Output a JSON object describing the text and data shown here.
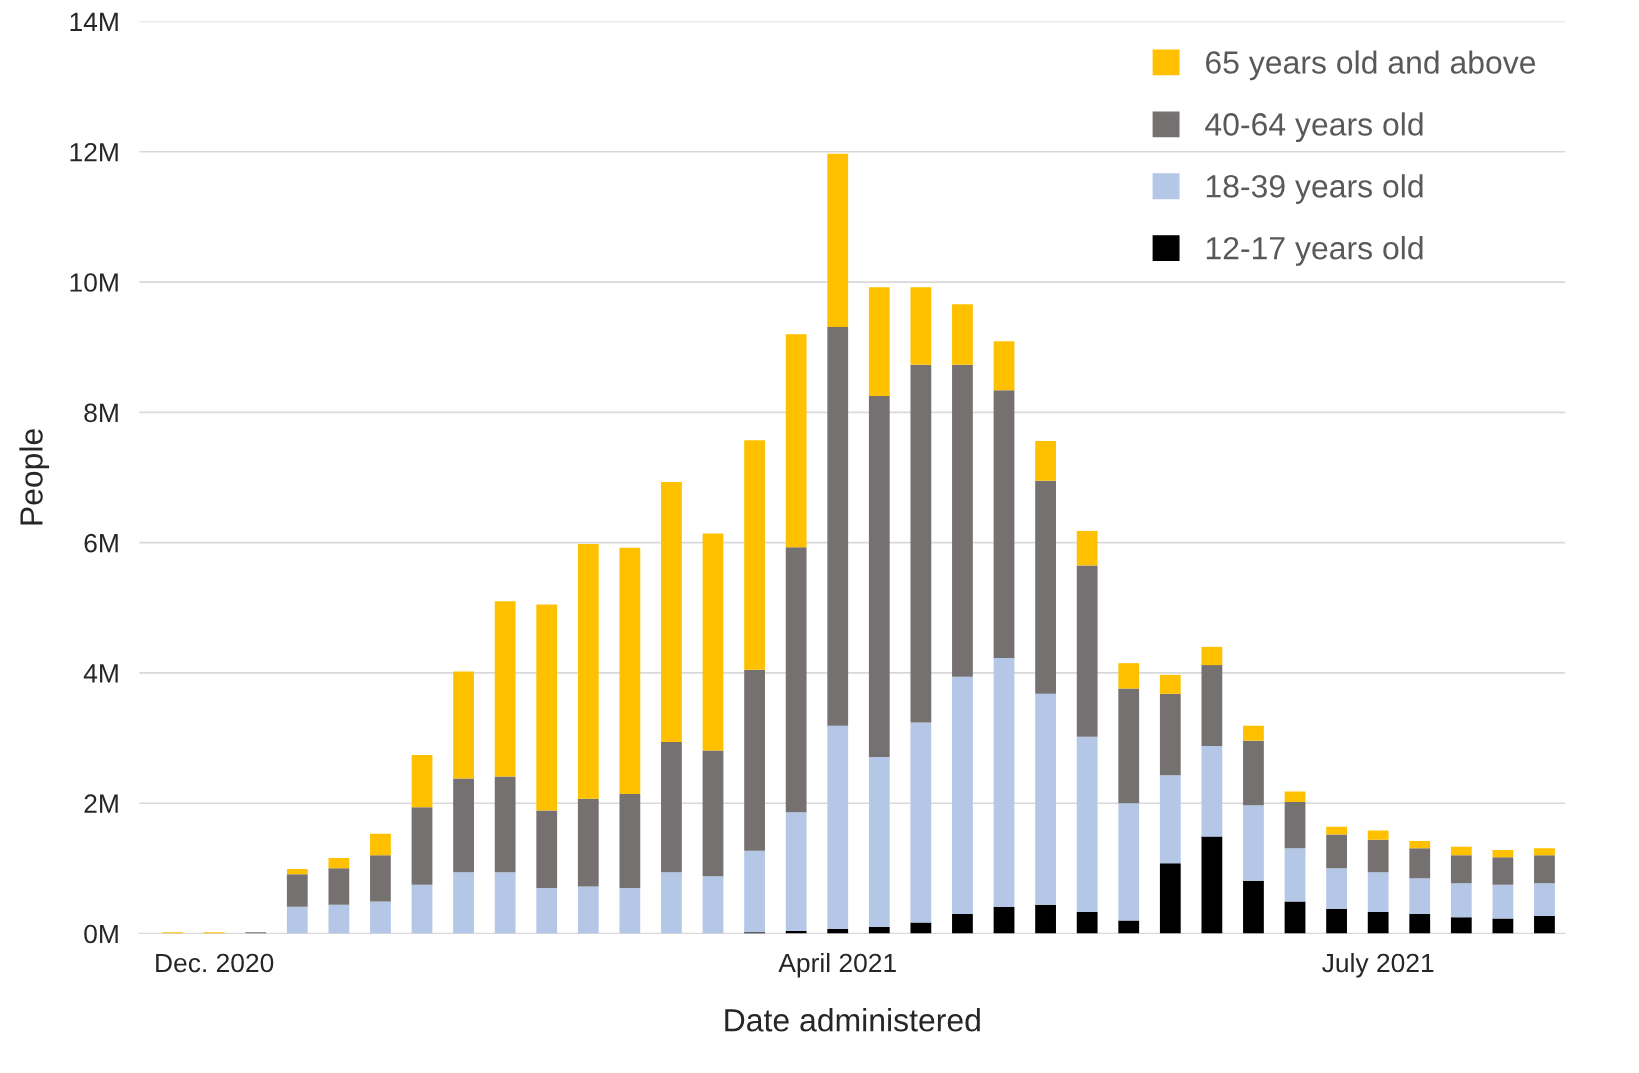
{
  "chart_data": {
    "type": "bar",
    "stacked": true,
    "xlabel": "Date administered",
    "ylabel": "People",
    "categories": [
      null,
      "Dec. 2020",
      null,
      null,
      null,
      null,
      null,
      null,
      null,
      null,
      null,
      null,
      null,
      null,
      null,
      null,
      "April 2021",
      null,
      null,
      null,
      null,
      null,
      null,
      null,
      null,
      null,
      null,
      null,
      null,
      "July 2021",
      null,
      null,
      null,
      null
    ],
    "series": [
      {
        "name": "12-17 years old",
        "color": "#000000",
        "values": [
          null,
          null,
          null,
          null,
          null,
          null,
          null,
          null,
          null,
          null,
          null,
          null,
          null,
          null,
          0.02,
          0.04,
          0.07,
          0.1,
          0.17,
          0.3,
          0.41,
          0.44,
          0.33,
          0.2,
          1.08,
          1.49,
          0.81,
          0.49,
          0.38,
          0.33,
          0.3,
          0.25,
          0.23,
          0.27
        ]
      },
      {
        "name": "18-39 years old",
        "color": "#b4c7e7",
        "values": [
          null,
          null,
          null,
          0.41,
          0.44,
          0.49,
          0.75,
          0.94,
          0.94,
          0.7,
          0.72,
          0.7,
          0.94,
          0.88,
          1.25,
          1.82,
          3.12,
          2.61,
          3.07,
          3.64,
          3.82,
          3.24,
          2.69,
          1.8,
          1.35,
          1.39,
          1.16,
          0.82,
          0.62,
          0.61,
          0.55,
          0.52,
          0.52,
          0.5
        ]
      },
      {
        "name": "40-64 years old",
        "color": "#767171",
        "values": [
          null,
          null,
          0.02,
          0.5,
          0.56,
          0.71,
          1.19,
          1.44,
          1.47,
          1.19,
          1.35,
          1.44,
          2.0,
          1.93,
          2.78,
          4.07,
          6.12,
          5.54,
          5.49,
          4.79,
          4.11,
          3.27,
          2.63,
          1.76,
          1.25,
          1.24,
          0.99,
          0.71,
          0.52,
          0.5,
          0.46,
          0.43,
          0.42,
          0.43
        ]
      },
      {
        "name": "65 years old and above",
        "color": "#ffc000",
        "values": [
          0.02,
          0.02,
          null,
          0.08,
          0.16,
          0.33,
          0.8,
          1.64,
          2.69,
          3.16,
          3.91,
          3.78,
          3.99,
          3.33,
          3.52,
          3.27,
          2.66,
          1.67,
          1.19,
          0.93,
          0.75,
          0.61,
          0.53,
          0.39,
          0.29,
          0.28,
          0.23,
          0.16,
          0.12,
          0.14,
          0.11,
          0.13,
          0.11,
          0.11
        ]
      }
    ],
    "ylim": [
      0,
      14
    ],
    "yticks": [
      {
        "value": 0,
        "label": "0M"
      },
      {
        "value": 2,
        "label": "2M"
      },
      {
        "value": 4,
        "label": "4M"
      },
      {
        "value": 6,
        "label": "6M"
      },
      {
        "value": 8,
        "label": "8M"
      },
      {
        "value": 10,
        "label": "10M"
      },
      {
        "value": 12,
        "label": "12M"
      },
      {
        "value": 14,
        "label": "14M"
      }
    ],
    "grid": "y",
    "legend": "top right"
  }
}
